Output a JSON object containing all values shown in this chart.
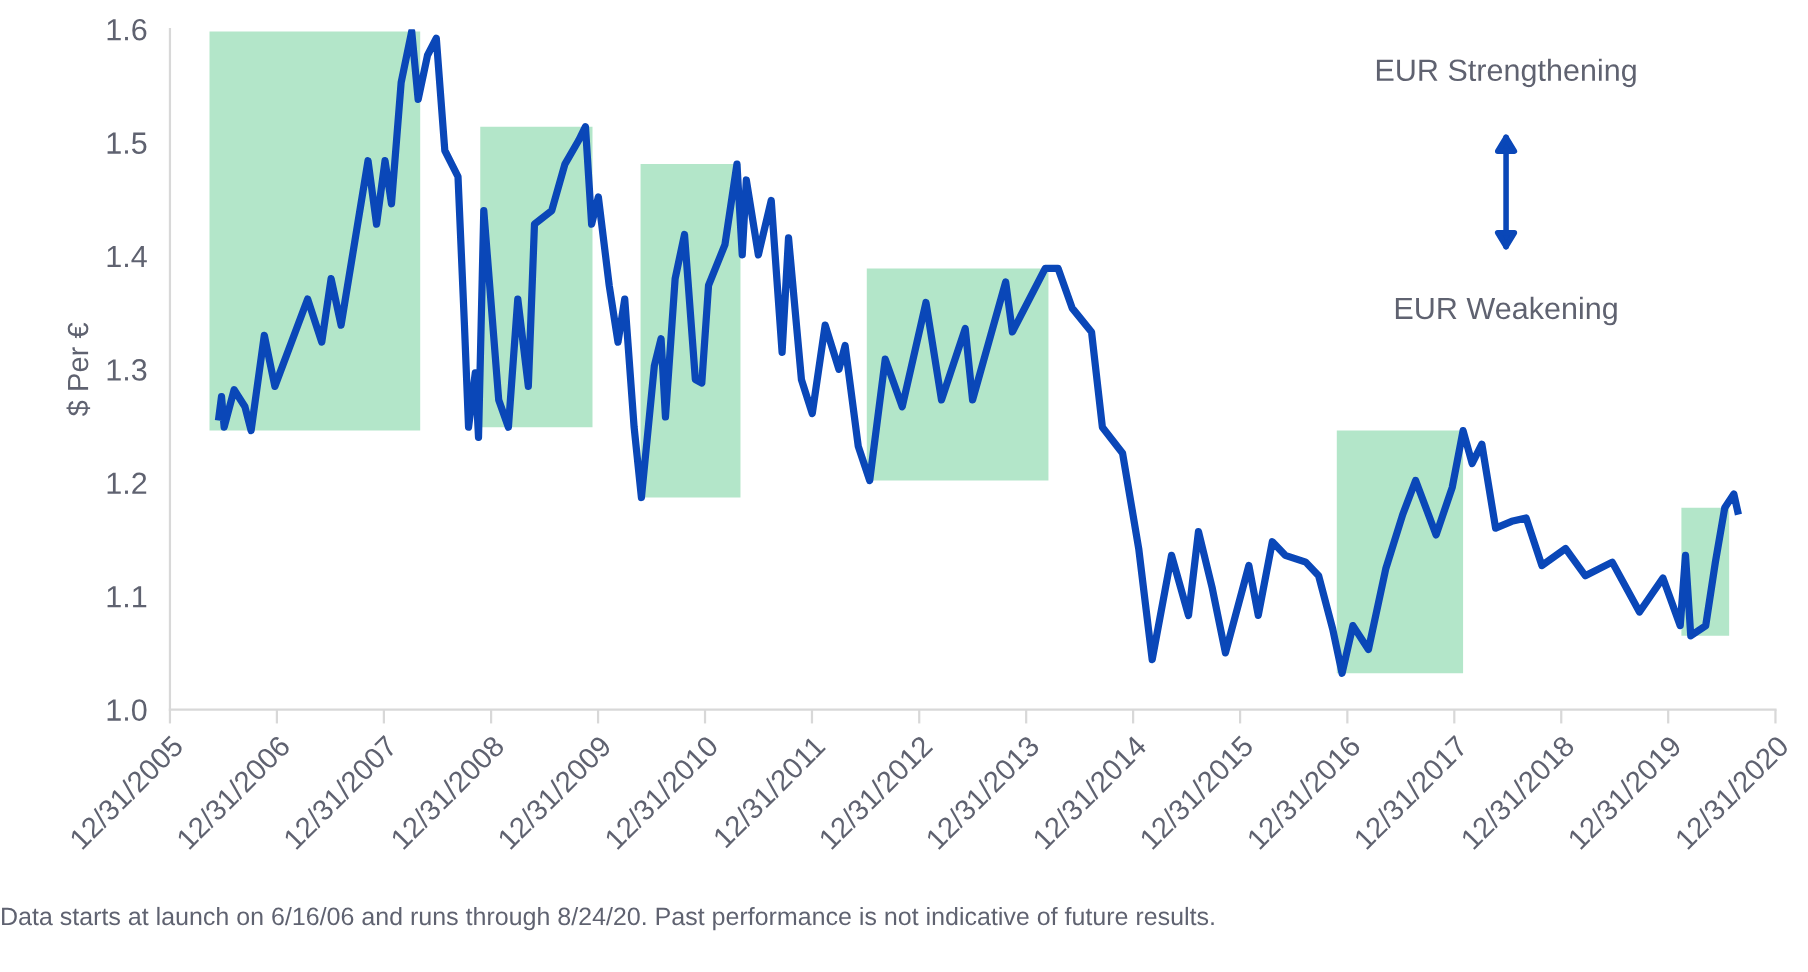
{
  "chart_data": {
    "type": "line",
    "ylabel": "$ Per €",
    "x": [
      "2006-06-16",
      "2006-06-25",
      "2006-07-04",
      "2006-08-07",
      "2006-09-13",
      "2006-10-04",
      "2006-11-18",
      "2006-12-24",
      "2007-04-15",
      "2007-06-02",
      "2007-07-04",
      "2007-08-07",
      "2007-11-07",
      "2007-12-06",
      "2008-01-04",
      "2008-01-26",
      "2008-02-28",
      "2008-04-04",
      "2008-04-26",
      "2008-05-28",
      "2008-06-27",
      "2008-07-26",
      "2008-09-09",
      "2008-10-01",
      "2008-10-15",
      "2008-11-07",
      "2008-11-18",
      "2008-12-06",
      "2009-01-26",
      "2009-02-28",
      "2009-04-01",
      "2009-05-07",
      "2009-05-28",
      "2009-07-26",
      "2009-09-09",
      "2009-10-26",
      "2009-11-18",
      "2009-12-09",
      "2010-01-01",
      "2010-02-07",
      "2010-03-09",
      "2010-04-01",
      "2010-05-03",
      "2010-05-28",
      "2010-07-11",
      "2010-08-03",
      "2010-08-18",
      "2010-09-20",
      "2010-10-22",
      "2010-11-28",
      "2010-12-20",
      "2011-01-12",
      "2011-03-09",
      "2011-04-19",
      "2011-05-07",
      "2011-05-21",
      "2011-07-01",
      "2011-08-14",
      "2011-09-20",
      "2011-10-12",
      "2011-11-25",
      "2012-01-01",
      "2012-02-14",
      "2012-04-01",
      "2012-04-22",
      "2012-06-06",
      "2012-07-15",
      "2012-09-06",
      "2012-11-03",
      "2013-01-23",
      "2013-03-17",
      "2013-06-06",
      "2013-07-01",
      "2013-10-22",
      "2013-11-14",
      "2014-03-06",
      "2014-04-19",
      "2014-06-06",
      "2014-08-11",
      "2014-09-17",
      "2014-11-25",
      "2015-01-19",
      "2015-03-06",
      "2015-05-11",
      "2015-07-08",
      "2015-08-11",
      "2015-09-27",
      "2015-11-11",
      "2016-01-30",
      "2016-03-02",
      "2016-04-19",
      "2016-06-02",
      "2016-08-11",
      "2016-09-24",
      "2016-11-11",
      "2016-12-13",
      "2017-01-19",
      "2017-03-13",
      "2017-05-11",
      "2017-07-08",
      "2017-08-21",
      "2017-10-30",
      "2017-12-24",
      "2018-01-30",
      "2018-03-02",
      "2018-04-04",
      "2018-05-21",
      "2018-07-15",
      "2018-09-02",
      "2018-10-26",
      "2019-01-15",
      "2019-03-23",
      "2019-06-23",
      "2019-09-24",
      "2019-12-13",
      "2020-02-10",
      "2020-02-28",
      "2020-03-17",
      "2020-05-07",
      "2020-06-09",
      "2020-07-11",
      "2020-08-11",
      "2020-08-24"
    ],
    "series": [
      {
        "color": "#0a47b8",
        "values": [
          1.258,
          1.276,
          1.249,
          1.282,
          1.267,
          1.246,
          1.33,
          1.285,
          1.362,
          1.324,
          1.38,
          1.339,
          1.484,
          1.428,
          1.484,
          1.446,
          1.553,
          1.598,
          1.538,
          1.577,
          1.592,
          1.493,
          1.47,
          1.339,
          1.249,
          1.297,
          1.24,
          1.44,
          1.273,
          1.249,
          1.362,
          1.285,
          1.428,
          1.44,
          1.481,
          1.502,
          1.514,
          1.428,
          1.452,
          1.374,
          1.324,
          1.362,
          1.249,
          1.187,
          1.303,
          1.327,
          1.258,
          1.38,
          1.419,
          1.291,
          1.288,
          1.374,
          1.41,
          1.481,
          1.401,
          1.467,
          1.401,
          1.449,
          1.315,
          1.416,
          1.291,
          1.261,
          1.339,
          1.3,
          1.321,
          1.232,
          1.202,
          1.309,
          1.267,
          1.359,
          1.273,
          1.336,
          1.273,
          1.377,
          1.333,
          1.389,
          1.389,
          1.354,
          1.333,
          1.249,
          1.226,
          1.142,
          1.044,
          1.136,
          1.083,
          1.157,
          1.107,
          1.05,
          1.127,
          1.083,
          1.148,
          1.136,
          1.13,
          1.118,
          1.071,
          1.032,
          1.074,
          1.053,
          1.124,
          1.172,
          1.202,
          1.154,
          1.196,
          1.246,
          1.217,
          1.234,
          1.16,
          1.166,
          1.169,
          1.127,
          1.142,
          1.118,
          1.13,
          1.086,
          1.116,
          1.074,
          1.136,
          1.065,
          1.074,
          1.13,
          1.178,
          1.19,
          1.175
        ]
      }
    ],
    "xlim": [
      "2005-12-31",
      "2020-12-31"
    ],
    "xticks": [
      {
        "value": "2005-12-31",
        "label": "12/31/2005"
      },
      {
        "value": "2006-12-31",
        "label": "12/31/2006"
      },
      {
        "value": "2007-12-31",
        "label": "12/31/2007"
      },
      {
        "value": "2008-12-31",
        "label": "12/31/2008"
      },
      {
        "value": "2009-12-31",
        "label": "12/31/2009"
      },
      {
        "value": "2010-12-31",
        "label": "12/31/2010"
      },
      {
        "value": "2011-12-31",
        "label": "12/31/2011"
      },
      {
        "value": "2012-12-31",
        "label": "12/31/2012"
      },
      {
        "value": "2013-12-31",
        "label": "12/31/2013"
      },
      {
        "value": "2014-12-31",
        "label": "12/31/2014"
      },
      {
        "value": "2015-12-31",
        "label": "12/31/2015"
      },
      {
        "value": "2016-12-31",
        "label": "12/31/2016"
      },
      {
        "value": "2017-12-31",
        "label": "12/31/2017"
      },
      {
        "value": "2018-12-31",
        "label": "12/31/2018"
      },
      {
        "value": "2019-12-31",
        "label": "12/31/2019"
      },
      {
        "value": "2020-12-31",
        "label": "12/31/2020"
      }
    ],
    "ylim": [
      1.0,
      1.6
    ],
    "yticks": [
      {
        "value": 1.0,
        "label": "1.0"
      },
      {
        "value": 1.1,
        "label": "1.1"
      },
      {
        "value": 1.2,
        "label": "1.2"
      },
      {
        "value": 1.3,
        "label": "1.3"
      },
      {
        "value": 1.4,
        "label": "1.4"
      },
      {
        "value": 1.5,
        "label": "1.5"
      },
      {
        "value": 1.6,
        "label": "1.6"
      }
    ],
    "bands": [
      {
        "axis": "x",
        "from": "2006-05-15",
        "to": "2008-05-03",
        "color": "#b3e6c9"
      },
      {
        "axis": "x",
        "from": "2008-11-24",
        "to": "2009-12-12",
        "color": "#b3e6c9"
      },
      {
        "axis": "x",
        "from": "2010-05-25",
        "to": "2011-05-01",
        "color": "#b3e6c9"
      },
      {
        "axis": "x",
        "from": "2012-07-05",
        "to": "2014-03-17",
        "color": "#b3e6c9"
      },
      {
        "axis": "x",
        "from": "2016-11-25",
        "to": "2018-01-30",
        "color": "#b3e6c9"
      },
      {
        "axis": "x",
        "from": "2020-02-14",
        "to": "2020-07-26",
        "color": "#b3e6c9"
      }
    ],
    "annotations": [
      "EUR Strengthening",
      "EUR Weakening",
      "Data starts at launch on 6/16/06 and runs through 8/24/20. Past performance is not indicative of future results."
    ],
    "grid": false,
    "marker": "none",
    "line_style": "solid"
  }
}
